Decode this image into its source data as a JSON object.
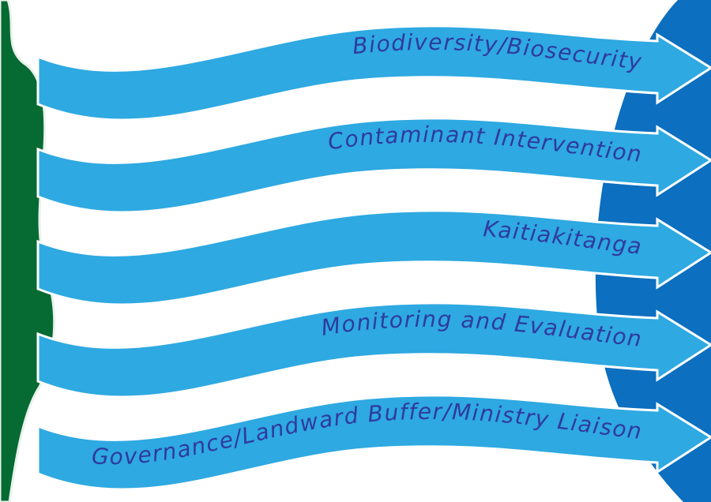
{
  "ribbons": [
    {
      "label": "Biodiversity/Biosecurity"
    },
    {
      "label": "Contaminant Intervention"
    },
    {
      "label": "Kaitiakitanga"
    },
    {
      "label": "Monitoring and Evaluation"
    },
    {
      "label": "Governance/Landward Buffer/Ministry Liaison"
    }
  ]
}
